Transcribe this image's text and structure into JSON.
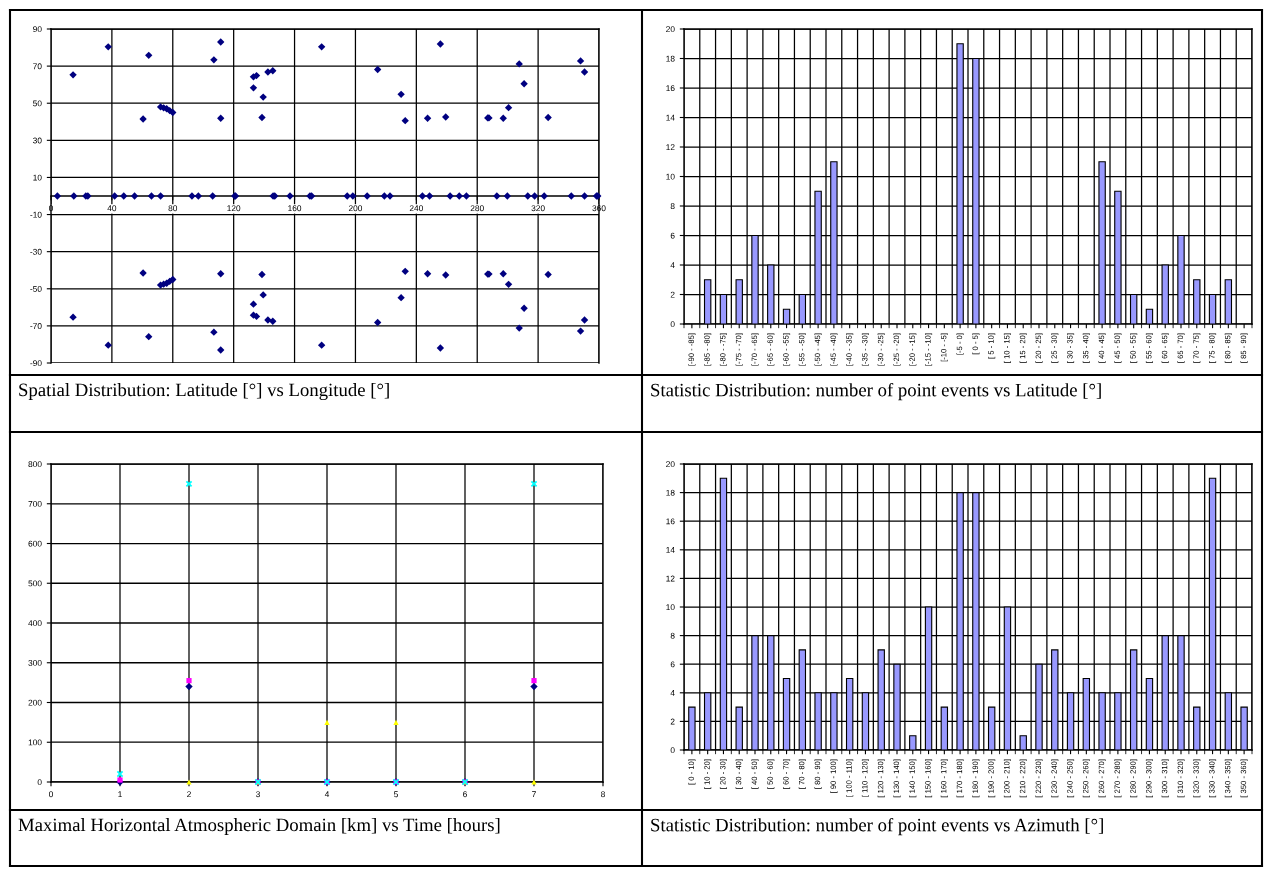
{
  "chart_data": [
    {
      "type": "scatter",
      "title": "Spatial Distribution: Latitude [°] vs Longitude [°]",
      "color": "#000080",
      "marker": "diamond",
      "grid": true,
      "x": [
        14.5,
        37.6,
        64.2,
        60.5,
        72,
        74,
        76,
        78,
        80,
        107,
        111.5,
        111.5,
        133,
        135,
        133,
        139.4,
        138.6,
        142.5,
        145.7,
        177.8,
        214.6,
        230,
        232.7,
        247.4,
        255.8,
        259.3,
        286.9,
        287.7,
        297.1,
        300.6,
        307.6,
        310.8,
        326.6,
        347.9,
        350.5,
        14.5,
        37.6,
        64.2,
        60.5,
        72,
        74,
        76,
        78,
        80,
        107,
        111.5,
        111.5,
        133,
        135,
        133,
        139.4,
        138.6,
        142.5,
        145.7,
        177.8,
        214.6,
        230,
        232.7,
        247.4,
        255.8,
        259.3,
        286.9,
        287.7,
        297.1,
        300.6,
        307.6,
        310.8,
        326.6,
        347.9,
        350.5,
        4.2,
        15,
        22.9,
        24.2,
        41.8,
        47.8,
        54.9,
        66,
        72,
        92.6,
        96.8,
        106.2,
        120.7,
        121.2,
        145.9,
        147,
        157,
        170.1,
        171.2,
        194.6,
        198.3,
        207.7,
        219,
        222.7,
        244,
        248.7,
        262.2,
        268.2,
        272.9,
        292.9,
        299.8,
        313.2,
        317.7,
        324,
        341.8,
        350.5,
        358.4,
        359.2
      ],
      "values": [
        65.3,
        80.4,
        75.8,
        41.5,
        48,
        47.5,
        47,
        46,
        45,
        73.4,
        83,
        41.9,
        64.2,
        64.9,
        58.3,
        53.3,
        42.3,
        66.8,
        67.5,
        80.4,
        68.2,
        54.8,
        40.6,
        41.9,
        81.9,
        42.6,
        42.1,
        42.1,
        41.9,
        47.6,
        71.2,
        60.5,
        42.3,
        72.8,
        66.8,
        -65.3,
        -80.4,
        -75.8,
        -41.5,
        -48,
        -47.5,
        -47,
        -46,
        -45,
        -73.4,
        -83,
        -41.9,
        -64.2,
        -64.9,
        -58.3,
        -53.3,
        -42.3,
        -66.8,
        -67.5,
        -80.4,
        -68.2,
        -54.8,
        -40.6,
        -41.9,
        -81.9,
        -42.6,
        -42.1,
        -42.1,
        -41.9,
        -47.6,
        -71.2,
        -60.5,
        -42.3,
        -72.8,
        -66.8,
        0,
        0,
        0,
        0,
        0,
        0,
        0,
        0,
        0,
        0,
        0,
        0,
        0,
        0,
        0,
        0,
        0,
        0,
        0,
        0,
        0,
        0,
        0,
        0,
        0,
        0,
        0,
        0,
        0,
        0,
        0,
        0,
        0,
        0,
        0,
        0,
        0,
        0
      ],
      "xlim": [
        0,
        360
      ],
      "xticks": [
        0,
        40,
        80,
        120,
        160,
        200,
        240,
        280,
        320,
        360
      ],
      "ylim": [
        -90,
        90
      ],
      "yticks": [
        -90,
        -70,
        -50,
        -30,
        -10,
        10,
        30,
        50,
        70,
        90
      ]
    },
    {
      "type": "bar",
      "title": "Statistic Distribution: number of point events vs Latitude [°]",
      "color": "#9999ff",
      "grid": true,
      "categories": [
        "[-90 - -85]",
        "[-85 - -80]",
        "[-80 - -75]",
        "[-75 - -70]",
        "[-70 - -65]",
        "[-65 - -60]",
        "[-60 - -55]",
        "[-55 - -50]",
        "[-50 - -45]",
        "[-45 - -40]",
        "[-40 - -35]",
        "[-35 - -30]",
        "[-30 - -25]",
        "[-25 - -20]",
        "[-20 - -15]",
        "[-15 - -10]",
        "[-10 - -5]",
        "[-5 - 0]",
        "[ 0 - 5]",
        "[ 5 - 10]",
        "[ 10 - 15]",
        "[ 15 - 20]",
        "[ 20 - 25]",
        "[ 25 - 30]",
        "[ 30 - 35]",
        "[ 35 - 40]",
        "[ 40 - 45]",
        "[ 45 - 50]",
        "[ 50 - 55]",
        "[ 55 - 60]",
        "[ 60 - 65]",
        "[ 65 - 70]",
        "[ 70 - 75]",
        "[ 75 - 80]",
        "[ 80 - 85]",
        "[ 85 - 90]"
      ],
      "values": [
        0,
        3,
        2,
        3,
        6,
        4,
        1,
        2,
        9,
        11,
        0,
        0,
        0,
        0,
        0,
        0,
        0,
        19,
        18,
        0,
        0,
        0,
        0,
        0,
        0,
        0,
        11,
        9,
        2,
        1,
        4,
        6,
        3,
        2,
        3,
        0
      ],
      "ylim": [
        0,
        20
      ],
      "yticks": [
        0,
        2,
        4,
        6,
        8,
        10,
        12,
        14,
        16,
        18,
        20
      ]
    },
    {
      "type": "scatter",
      "title": "Maximal Horizontal Atmospheric Domain [km] vs Time [hours]",
      "grid": true,
      "x": [
        1,
        2,
        3,
        4,
        5,
        6,
        7
      ],
      "series": [
        {
          "color": "#000080",
          "marker": "diamond",
          "values": [
            0,
            240,
            0,
            0,
            0,
            0,
            240
          ]
        },
        {
          "color": "#ff00ff",
          "marker": "square",
          "values": [
            5,
            255,
            0,
            0,
            0,
            0,
            255
          ]
        },
        {
          "color": "#ffff00",
          "marker": "triangle",
          "values": [
            null,
            0,
            0,
            150,
            150,
            0,
            0
          ]
        },
        {
          "color": "#00ffff",
          "marker": "cross",
          "values": [
            20,
            750,
            0,
            0,
            0,
            0,
            750
          ]
        }
      ],
      "xlim": [
        0,
        8
      ],
      "xticks": [
        0,
        1,
        2,
        3,
        4,
        5,
        6,
        7,
        8
      ],
      "ylim": [
        0,
        800
      ],
      "yticks": [
        0,
        100,
        200,
        300,
        400,
        500,
        600,
        700,
        800
      ]
    },
    {
      "type": "bar",
      "title": "Statistic Distribution: number of point events vs Azimuth [°]",
      "color": "#9999ff",
      "grid": true,
      "categories": [
        "[ 0 - 10]",
        "[ 10 - 20]",
        "[ 20 - 30]",
        "[ 30 - 40]",
        "[ 40 - 50]",
        "[ 50 - 60]",
        "[ 60 - 70]",
        "[ 70 - 80]",
        "[ 80 - 90]",
        "[ 90 - 100]",
        "[ 100 - 110]",
        "[ 110 - 120]",
        "[ 120 - 130]",
        "[ 130 - 140]",
        "[ 140 - 150]",
        "[ 150 - 160]",
        "[ 160 - 170]",
        "[ 170 - 180]",
        "[ 180 - 190]",
        "[ 190 - 200]",
        "[ 200 - 210]",
        "[ 210 - 220]",
        "[ 220 - 230]",
        "[ 230 - 240]",
        "[ 240 - 250]",
        "[ 250 - 260]",
        "[ 260 - 270]",
        "[ 270 - 280]",
        "[ 280 - 290]",
        "[ 290 - 300]",
        "[ 300 - 310]",
        "[ 310 - 320]",
        "[ 320 - 330]",
        "[ 330 - 340]",
        "[ 340 - 350]",
        "[ 350 - 360]"
      ],
      "values": [
        3,
        4,
        19,
        3,
        8,
        8,
        5,
        7,
        4,
        4,
        5,
        4,
        7,
        6,
        1,
        10,
        3,
        18,
        18,
        3,
        10,
        1,
        6,
        7,
        4,
        5,
        4,
        4,
        7,
        5,
        8,
        8,
        3,
        19,
        4,
        3
      ],
      "ylim": [
        0,
        20
      ],
      "yticks": [
        0,
        2,
        4,
        6,
        8,
        10,
        12,
        14,
        16,
        18,
        20
      ]
    }
  ]
}
